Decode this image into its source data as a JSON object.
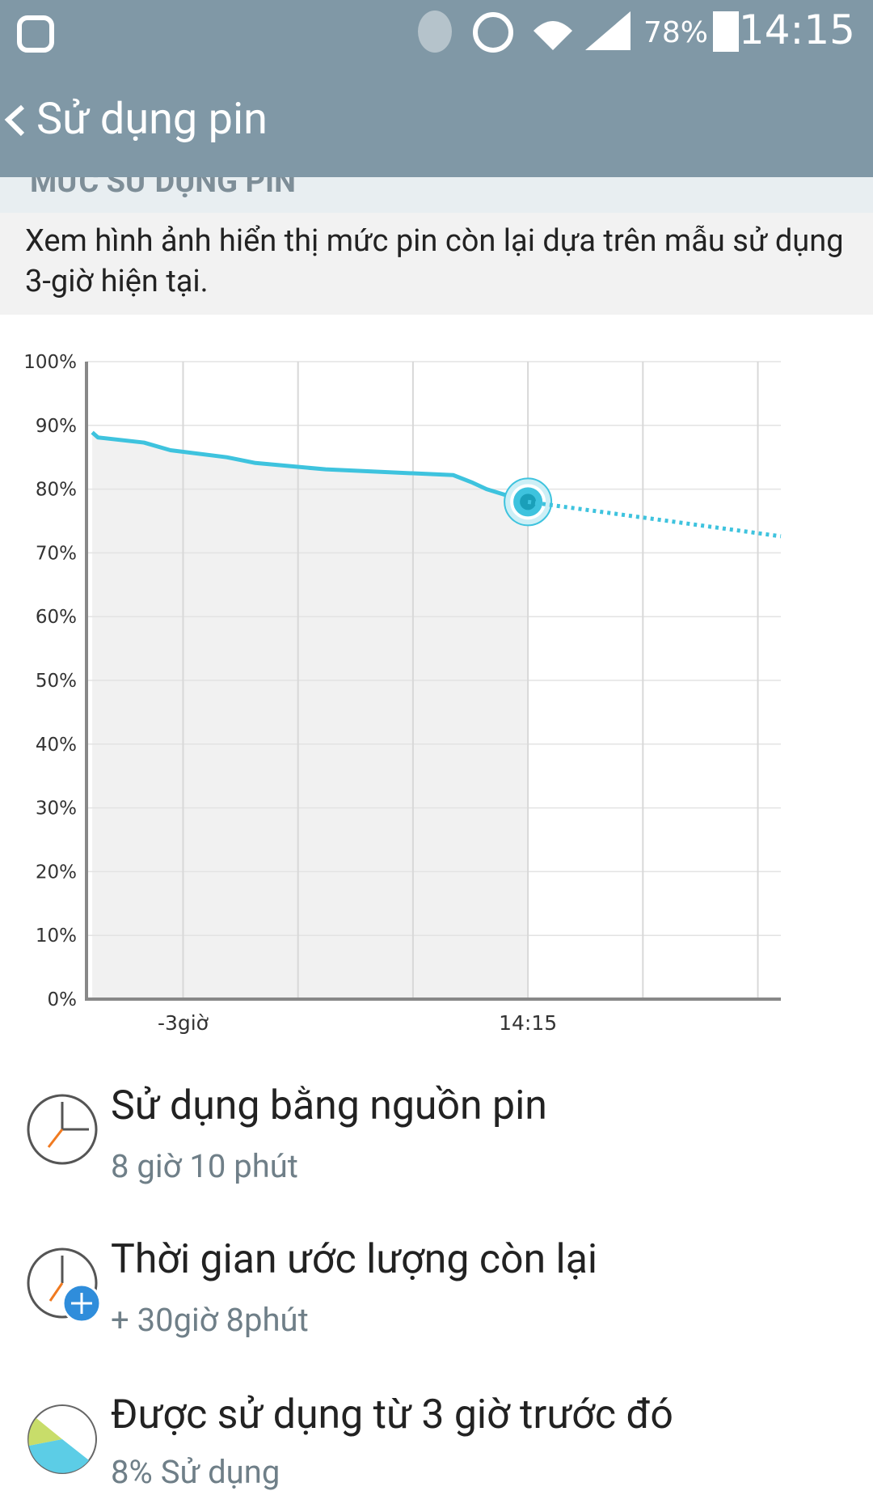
{
  "status_bar": {
    "battery": "78%",
    "time": "14:15"
  },
  "header": {
    "title": "Sử dụng pin"
  },
  "section": {
    "title": "MỨC SỬ DỤNG PIN",
    "description": "Xem hình ảnh hiển thị mức pin còn lại dựa trên mẫu sử dụng 3-giờ hiện tại."
  },
  "chart_data": {
    "type": "line",
    "xlim": [
      -3.84,
      2.2
    ],
    "ylim": [
      0,
      100
    ],
    "xticks": [
      {
        "value": -3,
        "label": "-3giờ"
      },
      {
        "value": 0,
        "label": "14:15"
      }
    ],
    "xgrid": [
      -2,
      -1,
      1,
      2
    ],
    "yticks": [
      {
        "value": 0,
        "label": "0%"
      },
      {
        "value": 10,
        "label": "10%"
      },
      {
        "value": 20,
        "label": "20%"
      },
      {
        "value": 30,
        "label": "30%"
      },
      {
        "value": 40,
        "label": "40%"
      },
      {
        "value": 50,
        "label": "50%"
      },
      {
        "value": 60,
        "label": "60%"
      },
      {
        "value": 70,
        "label": "70%"
      },
      {
        "value": 80,
        "label": "80%"
      },
      {
        "value": 90,
        "label": "90%"
      },
      {
        "value": 100,
        "label": "100%"
      }
    ],
    "grid": true,
    "series": [
      {
        "color": "#3ec3de",
        "line_style": "solid",
        "fill": "#f1f1f1",
        "marker": true,
        "x": [
          -3.79,
          -3.74,
          -3.34,
          -3.11,
          -2.62,
          -2.37,
          -1.76,
          -0.65,
          -0.48,
          -0.36,
          0
        ],
        "values": [
          88.9,
          88.1,
          87.3,
          86.1,
          85,
          84.1,
          83.1,
          82.2,
          81,
          80,
          78
        ]
      },
      {
        "color": "#3ec3de",
        "line_style": "dotted",
        "x": [
          0,
          2.2
        ],
        "values": [
          78,
          72.6
        ]
      }
    ]
  },
  "items": [
    {
      "title": "Sử dụng bằng nguồn pin",
      "subtitle": "8 giờ 10 phút"
    },
    {
      "title": "Thời gian ước lượng còn lại",
      "subtitle": "+ 30giờ 8phút"
    },
    {
      "title": "Được sử dụng từ 3 giờ trước đó",
      "subtitle": "8% Sử dụng"
    }
  ]
}
